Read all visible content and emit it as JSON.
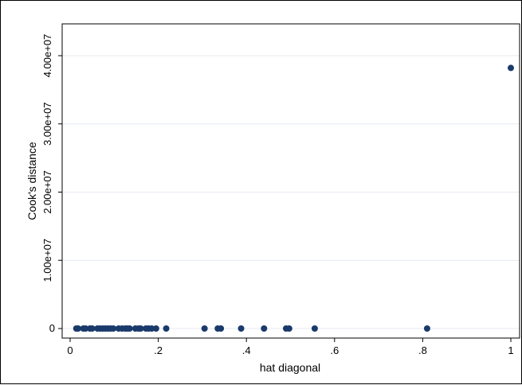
{
  "chart_data": {
    "type": "scatter",
    "title": "",
    "xlabel": "hat diagonal",
    "ylabel": "Cook's distance",
    "xlim": [
      0,
      1
    ],
    "ylim": [
      0,
      40000000
    ],
    "grid": true,
    "legend": "none",
    "marker_color": "#1a3a6b",
    "grid_color": "#e4eaf1",
    "x_ticks": [
      {
        "value": 0,
        "label": "0"
      },
      {
        "value": 0.2,
        "label": ".2"
      },
      {
        "value": 0.4,
        "label": ".4"
      },
      {
        "value": 0.6,
        "label": ".6"
      },
      {
        "value": 0.8,
        "label": ".8"
      },
      {
        "value": 1,
        "label": "1"
      }
    ],
    "y_ticks": [
      {
        "value": 0,
        "label": "0"
      },
      {
        "value": 10000000,
        "label": "1.00e+07"
      },
      {
        "value": 20000000,
        "label": "2.00e+07"
      },
      {
        "value": 30000000,
        "label": "3.00e+07"
      },
      {
        "value": 40000000,
        "label": "4.00e+07"
      }
    ],
    "points": [
      {
        "x": 0.014,
        "y": 0
      },
      {
        "x": 0.018,
        "y": 0
      },
      {
        "x": 0.03,
        "y": 0
      },
      {
        "x": 0.035,
        "y": 0
      },
      {
        "x": 0.045,
        "y": 0
      },
      {
        "x": 0.05,
        "y": 0
      },
      {
        "x": 0.062,
        "y": 0
      },
      {
        "x": 0.068,
        "y": 0
      },
      {
        "x": 0.074,
        "y": 0
      },
      {
        "x": 0.08,
        "y": 0
      },
      {
        "x": 0.086,
        "y": 0
      },
      {
        "x": 0.092,
        "y": 0
      },
      {
        "x": 0.098,
        "y": 0
      },
      {
        "x": 0.11,
        "y": 0
      },
      {
        "x": 0.118,
        "y": 0
      },
      {
        "x": 0.125,
        "y": 0
      },
      {
        "x": 0.13,
        "y": 0
      },
      {
        "x": 0.135,
        "y": 0
      },
      {
        "x": 0.148,
        "y": 0
      },
      {
        "x": 0.155,
        "y": 0
      },
      {
        "x": 0.16,
        "y": 0
      },
      {
        "x": 0.172,
        "y": 0
      },
      {
        "x": 0.178,
        "y": 0
      },
      {
        "x": 0.185,
        "y": 0
      },
      {
        "x": 0.195,
        "y": 0
      },
      {
        "x": 0.218,
        "y": 0
      },
      {
        "x": 0.305,
        "y": 0
      },
      {
        "x": 0.335,
        "y": 0
      },
      {
        "x": 0.342,
        "y": 0
      },
      {
        "x": 0.388,
        "y": 0
      },
      {
        "x": 0.44,
        "y": 0
      },
      {
        "x": 0.49,
        "y": 0
      },
      {
        "x": 0.497,
        "y": 0
      },
      {
        "x": 0.555,
        "y": 0
      },
      {
        "x": 0.81,
        "y": 0
      },
      {
        "x": 1.0,
        "y": 38200000
      }
    ]
  }
}
